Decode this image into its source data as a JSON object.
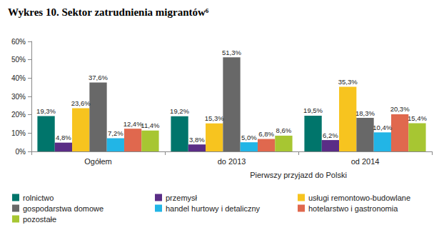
{
  "chart_data": {
    "type": "bar",
    "title": "Wykres 10. Sektor zatrudnienia migrantów⁶",
    "categories": [
      "Ogółem",
      "do 2013",
      "od 2014"
    ],
    "category_group": {
      "label": "Pierwszy przyjazd do Polski",
      "categories": [
        "do 2013",
        "od 2014"
      ]
    },
    "series": [
      {
        "name": "rolnictwo",
        "color": "#00756b",
        "values": [
          19.3,
          19.2,
          19.5
        ],
        "value_labels": [
          "19,3%",
          "19,2%",
          "19,5%"
        ]
      },
      {
        "name": "przemysł",
        "color": "#5a2d86",
        "values": [
          4.8,
          3.8,
          6.2
        ],
        "value_labels": [
          "4,8%",
          "3,8%",
          "6,2%"
        ]
      },
      {
        "name": "usługi remontowo-budowlane",
        "color": "#f7c41f",
        "values": [
          23.6,
          15.3,
          35.3
        ],
        "value_labels": [
          "23,6%",
          "15,3%",
          "35,3%"
        ]
      },
      {
        "name": "gospodarstwa domowe",
        "color": "#686868",
        "values": [
          37.6,
          51.3,
          18.3
        ],
        "value_labels": [
          "37,6%",
          "51,3%",
          "18,3%"
        ]
      },
      {
        "name": "handel hurtowy i detaliczny",
        "color": "#22b5e6",
        "values": [
          7.2,
          5.0,
          10.4
        ],
        "value_labels": [
          "7,2%",
          "5,0%",
          "10,4%"
        ]
      },
      {
        "name": "hotelarstwo i gastronomia",
        "color": "#e0684e",
        "values": [
          12.4,
          6.8,
          20.3
        ],
        "value_labels": [
          "12,4%",
          "6,8%",
          "20,3%"
        ]
      },
      {
        "name": "pozostałe",
        "color": "#a7c632",
        "values": [
          11.4,
          8.6,
          15.4
        ],
        "value_labels": [
          "11,4%",
          "8,6%",
          "15,4%"
        ]
      }
    ],
    "ylim": [
      0,
      60
    ],
    "yticks": [
      {
        "value": 0,
        "label": "0%"
      },
      {
        "value": 10,
        "label": "10%"
      },
      {
        "value": 20,
        "label": "20%"
      },
      {
        "value": 30,
        "label": "30%"
      },
      {
        "value": 40,
        "label": "40%"
      },
      {
        "value": 50,
        "label": "50%"
      },
      {
        "value": 60,
        "label": "60%"
      }
    ],
    "grid": false,
    "legend": "bottom",
    "data_labels": true
  }
}
